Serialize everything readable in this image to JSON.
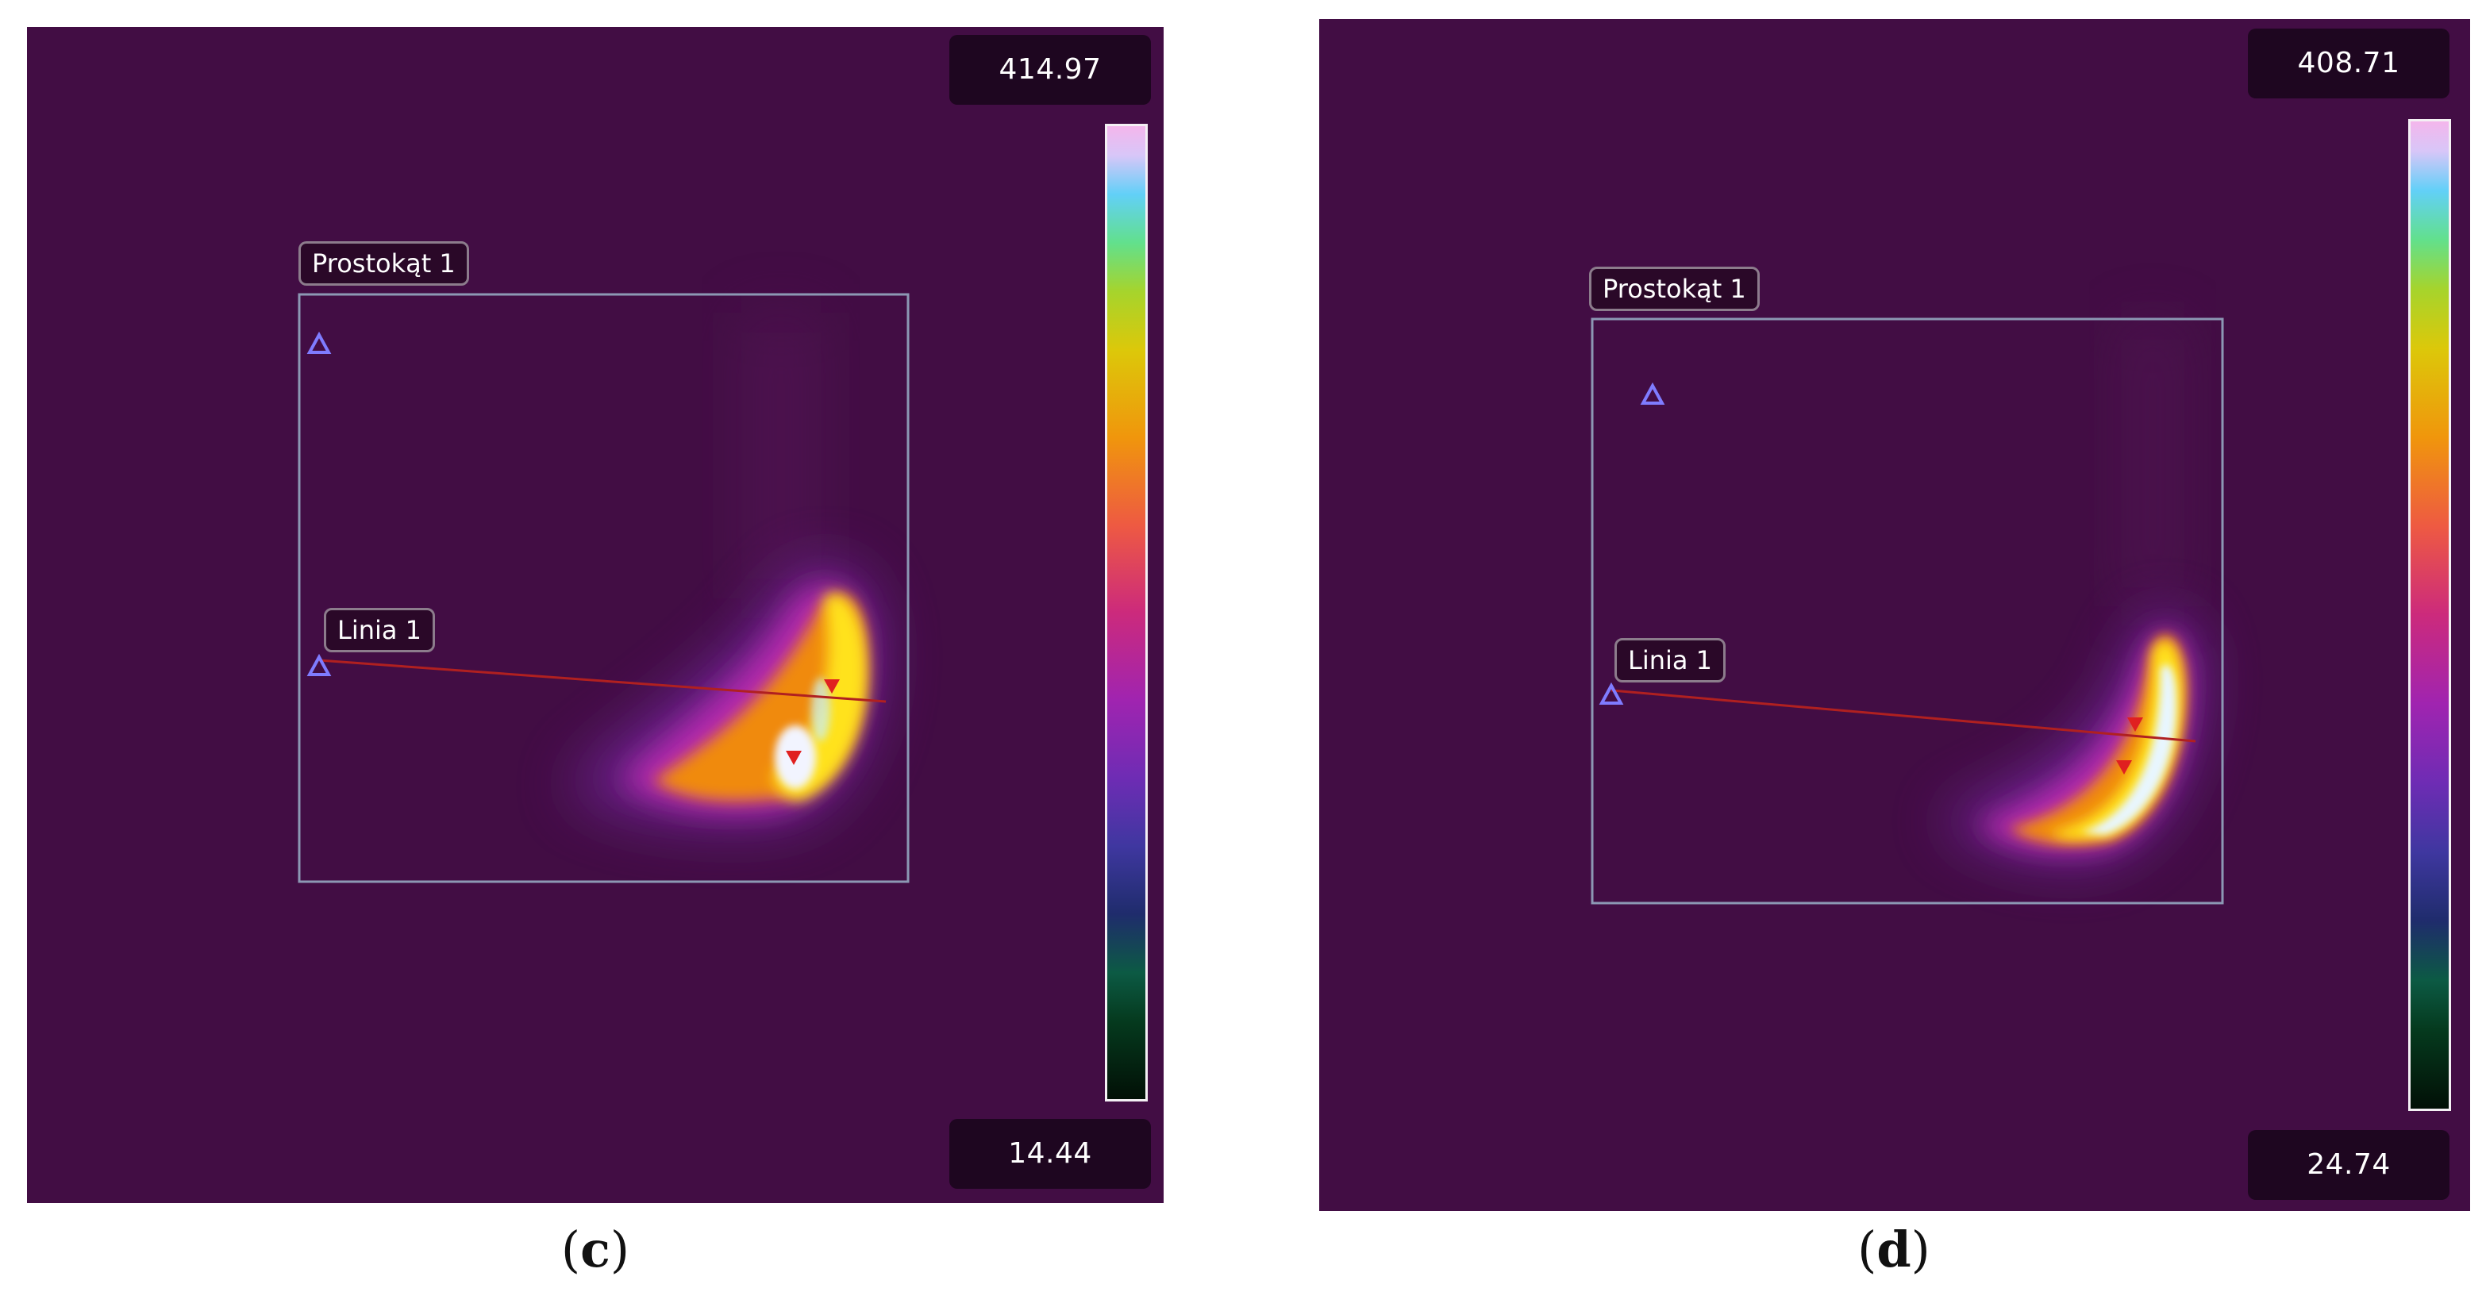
{
  "panels": [
    {
      "id": "c",
      "caption_letter": "c",
      "roi_rect_label": "Prostokąt 1",
      "roi_line_label": "Linia 1",
      "scale_max": "414.97",
      "scale_min": "14.44"
    },
    {
      "id": "d",
      "caption_letter": "d",
      "roi_rect_label": "Prostokąt 1",
      "roi_line_label": "Linia 1",
      "scale_max": "408.71",
      "scale_min": "24.74"
    }
  ],
  "colors": {
    "background": "#420d44",
    "roi_outline": "#8c98b4",
    "line_marker": "#b02020",
    "hot_marker": "#e02020",
    "cold_marker": "#7f7cff"
  },
  "colormap": "iron/rainbow (black-green-blue-purple-red-orange-yellow-cyan-white-pink)",
  "icons": [
    "cold-spot-marker-icon",
    "hot-spot-marker-icon"
  ]
}
